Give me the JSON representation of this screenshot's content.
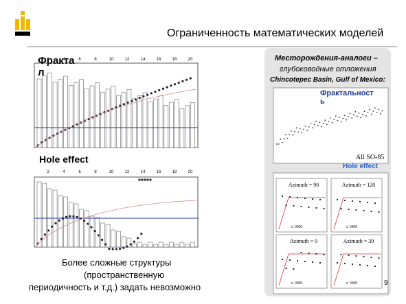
{
  "header": {
    "title": "Ограниченность математических моделей"
  },
  "left": {
    "fractal_label": "Фрактал",
    "hole_label": "Hole effect",
    "axis_ticks": [
      "2",
      "4",
      "6",
      "8",
      "10",
      "12",
      "14",
      "16",
      "18",
      "20"
    ],
    "caption": [
      "Более сложные структуры",
      "(пространственную",
      "периодичность и т.д.) задать невозможно"
    ]
  },
  "right": {
    "heading": [
      "Месторождения-аналоги –",
      "глубоководные отложения",
      "Chincotepec Basin, Gulf of Mexico:"
    ],
    "fractal_label": "Фрактальность",
    "all_label": "All SO-85",
    "hole_label": "Hole effect",
    "azimuths": [
      "Azimuth = 90",
      "Azimuth = 120",
      "Azimuth = 0",
      "Azimuth = 30"
    ],
    "scale_label": "x 1000"
  },
  "page_number": "9"
}
